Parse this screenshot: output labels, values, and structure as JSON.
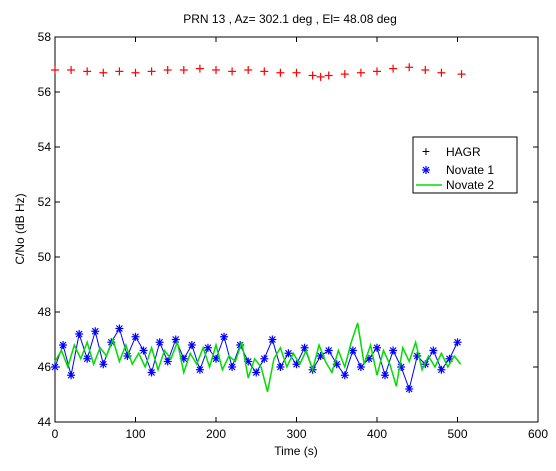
{
  "chart_data": {
    "type": "scatter",
    "title": "PRN 13 , Az= 302.1 deg , El= 48.08 deg",
    "xlabel": "Time (s)",
    "ylabel": "C/No (dB Hz)",
    "xlim": [
      0,
      600
    ],
    "ylim": [
      44,
      58
    ],
    "xticks": [
      0,
      100,
      200,
      300,
      400,
      500,
      600
    ],
    "yticks": [
      44,
      46,
      48,
      50,
      52,
      54,
      56,
      58
    ],
    "x_tick_labels": [
      "0",
      "100",
      "200",
      "300",
      "400",
      "500",
      "600"
    ],
    "y_tick_labels": [
      "44",
      "46",
      "48",
      "50",
      "52",
      "54",
      "56",
      "58"
    ],
    "grid": false,
    "legend_position": "right",
    "series": [
      {
        "name": "HAGR",
        "marker": "plus",
        "color": "#ff0000",
        "x": [
          0,
          20,
          40,
          60,
          80,
          100,
          120,
          140,
          160,
          180,
          200,
          220,
          240,
          260,
          280,
          300,
          320,
          330,
          340,
          360,
          380,
          400,
          420,
          440,
          460,
          480,
          505
        ],
        "y": [
          56.8,
          56.8,
          56.75,
          56.7,
          56.75,
          56.7,
          56.75,
          56.8,
          56.8,
          56.85,
          56.8,
          56.75,
          56.8,
          56.75,
          56.7,
          56.7,
          56.6,
          56.55,
          56.6,
          56.65,
          56.7,
          56.75,
          56.85,
          56.9,
          56.8,
          56.7,
          56.65
        ]
      },
      {
        "name": "Novate 1",
        "marker": "asterisk",
        "color": "#0000ff",
        "x": [
          0,
          10,
          20,
          30,
          40,
          50,
          60,
          70,
          80,
          90,
          100,
          110,
          120,
          130,
          140,
          150,
          160,
          170,
          180,
          190,
          200,
          210,
          220,
          230,
          240,
          250,
          260,
          270,
          280,
          290,
          300,
          310,
          320,
          330,
          340,
          350,
          360,
          370,
          380,
          390,
          400,
          410,
          420,
          430,
          440,
          450,
          460,
          470,
          480,
          490,
          500
        ],
        "y": [
          46.0,
          46.8,
          45.7,
          47.2,
          46.3,
          47.3,
          46.1,
          46.9,
          47.4,
          46.4,
          47.1,
          46.6,
          45.8,
          46.9,
          46.2,
          47.0,
          46.3,
          46.8,
          45.9,
          46.7,
          46.3,
          47.1,
          46.0,
          46.8,
          46.2,
          45.8,
          46.3,
          47.0,
          46.0,
          46.5,
          46.1,
          46.7,
          45.9,
          46.4,
          46.6,
          46.1,
          45.7,
          46.6,
          46.0,
          46.3,
          46.7,
          45.7,
          46.6,
          46.0,
          45.2,
          46.4,
          46.1,
          46.6,
          45.9,
          46.3,
          46.9
        ]
      },
      {
        "name": "Novate 2",
        "marker": "line",
        "color": "#00dd00",
        "x": [
          0,
          8,
          16,
          24,
          32,
          40,
          48,
          56,
          64,
          72,
          80,
          88,
          96,
          104,
          112,
          120,
          128,
          136,
          144,
          152,
          160,
          168,
          176,
          184,
          192,
          200,
          208,
          216,
          224,
          232,
          240,
          248,
          256,
          264,
          272,
          280,
          288,
          296,
          304,
          312,
          320,
          328,
          336,
          344,
          352,
          360,
          368,
          376,
          384,
          392,
          400,
          408,
          416,
          424,
          432,
          440,
          448,
          456,
          464,
          472,
          480,
          488,
          496,
          504
        ],
        "y": [
          46.2,
          46.6,
          46.0,
          46.8,
          46.3,
          46.9,
          46.1,
          46.7,
          46.4,
          47.0,
          46.2,
          46.8,
          46.1,
          46.5,
          46.0,
          46.7,
          45.9,
          46.6,
          46.3,
          46.9,
          45.8,
          46.5,
          46.1,
          46.7,
          46.0,
          46.8,
          45.9,
          46.4,
          46.2,
          46.9,
          45.6,
          46.3,
          46.0,
          45.1,
          46.3,
          46.7,
          46.0,
          46.5,
          46.1,
          46.6,
          45.9,
          46.8,
          46.2,
          45.8,
          46.6,
          46.0,
          46.9,
          47.6,
          46.1,
          46.8,
          45.7,
          46.6,
          46.1,
          45.3,
          46.7,
          46.2,
          46.9,
          45.9,
          46.4,
          46.0,
          46.5,
          46.0,
          46.4,
          46.1
        ]
      }
    ]
  }
}
